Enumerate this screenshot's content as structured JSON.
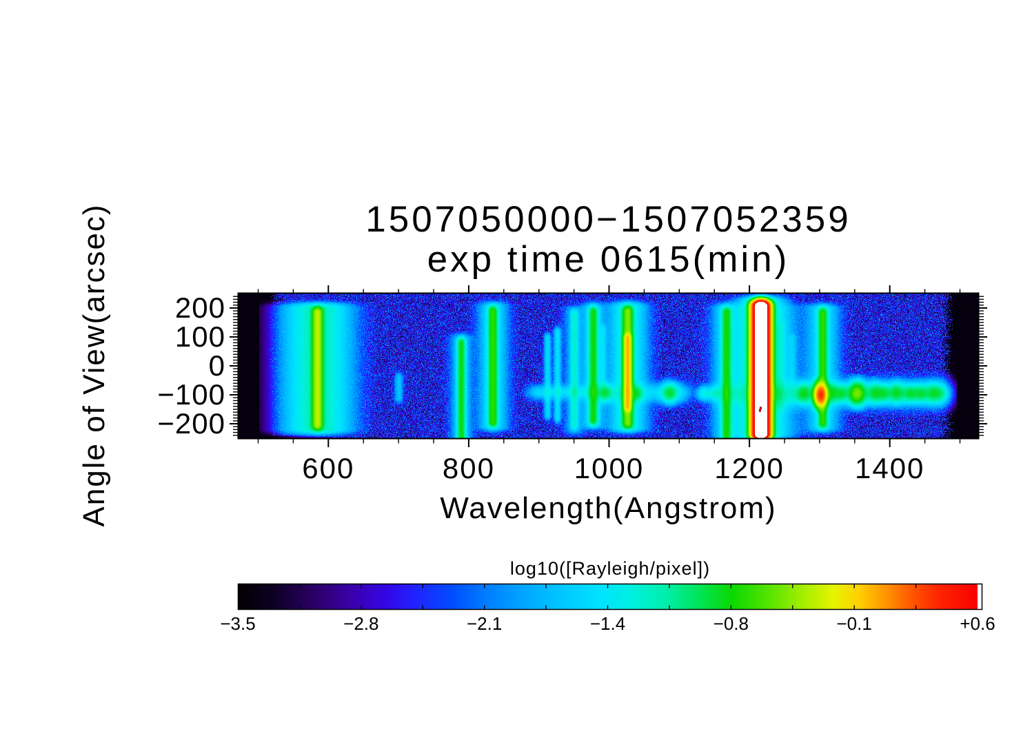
{
  "chart_data": {
    "type": "heatmap",
    "title": "1507050000−1507052359",
    "subtitle": "exp time 0615(min)",
    "xlabel": "Wavelength(Angstrom)",
    "ylabel": "Angle of View(arcsec)",
    "xlim": [
      472,
      1527
    ],
    "ylim": [
      -250,
      250
    ],
    "x_unit": "Angstrom",
    "y_unit": "arcsec",
    "x_ticks": [
      600,
      800,
      1000,
      1200,
      1400
    ],
    "x_tick_labels": [
      "600",
      "800",
      "1000",
      "1200",
      "1400"
    ],
    "x_minor_step": 50,
    "y_ticks": [
      200,
      100,
      0,
      -100,
      -200
    ],
    "y_tick_labels": [
      "200",
      "100",
      "0",
      "−100",
      "−200"
    ],
    "y_minor_step": 10,
    "grid": false,
    "colorbar": {
      "title": "log10([Rayleigh/pixel])",
      "vmin": -3.5,
      "vmax": 0.6,
      "tick_labels": [
        "−3.5",
        "−2.8",
        "−2.1",
        "−1.4",
        "−0.8",
        "−0.1",
        "+0.6"
      ],
      "tick_values": [
        -3.5,
        -2.8,
        -2.1,
        -1.4,
        -0.8,
        -0.1,
        0.6
      ],
      "minor_divisions": 12,
      "saturation_color": "#ffffff",
      "colormap_stops": [
        [
          -3.5,
          "#000000"
        ],
        [
          -3.3,
          "#0e0026"
        ],
        [
          -3.08,
          "#2a0064"
        ],
        [
          -2.88,
          "#3a00a8"
        ],
        [
          -2.68,
          "#3406e6"
        ],
        [
          -2.52,
          "#2222ff"
        ],
        [
          -2.32,
          "#004cff"
        ],
        [
          -2.12,
          "#007eff"
        ],
        [
          -1.92,
          "#00a6ff"
        ],
        [
          -1.7,
          "#00c8ff"
        ],
        [
          -1.5,
          "#00e2ff"
        ],
        [
          -1.32,
          "#00f0e0"
        ],
        [
          -1.12,
          "#00eea6"
        ],
        [
          -0.94,
          "#00e455"
        ],
        [
          -0.76,
          "#0cd800"
        ],
        [
          -0.56,
          "#55e400"
        ],
        [
          -0.36,
          "#a8ee00"
        ],
        [
          -0.2,
          "#e6f400"
        ],
        [
          -0.06,
          "#ffd000"
        ],
        [
          0.08,
          "#ff9800"
        ],
        [
          0.22,
          "#ff5c00"
        ],
        [
          0.38,
          "#ff2400"
        ],
        [
          0.6,
          "#f80000"
        ]
      ]
    },
    "background": {
      "base_value": -2.58,
      "noise_range": 1.0,
      "dark_speckle_fraction": 0.07,
      "bright_speckle_fraction": 0.035,
      "dark_band_left_max_wavelength": 527,
      "dark_band_right_min_wavelength": 1477
    },
    "emission_lines": [
      {
        "wavelength": 584,
        "y_top": 186,
        "y_bottom": -202,
        "peak": -0.36,
        "sigma_x": 4.5,
        "halo_peak": -1.2,
        "halo_sigma": 26
      },
      {
        "wavelength": 700,
        "y_top": -40,
        "y_bottom": -110,
        "peak": -1.78,
        "sigma_x": 3.5,
        "halo_peak": null,
        "halo_sigma": 0
      },
      {
        "wavelength": 789,
        "y_top": 80,
        "y_bottom": -250,
        "peak": -0.85,
        "sigma_x": 3.5,
        "halo_peak": -1.75,
        "halo_sigma": 9
      },
      {
        "wavelength": 834,
        "y_top": 190,
        "y_bottom": -192,
        "peak": -0.74,
        "sigma_x": 4.0,
        "halo_peak": -1.55,
        "halo_sigma": 12
      },
      {
        "wavelength": 912,
        "y_top": 96,
        "y_bottom": -168,
        "peak": -1.62,
        "sigma_x": 3.0,
        "halo_peak": null,
        "halo_sigma": 0
      },
      {
        "wavelength": 926,
        "y_top": 118,
        "y_bottom": -178,
        "peak": -1.56,
        "sigma_x": 3.0,
        "halo_peak": null,
        "halo_sigma": 0
      },
      {
        "wavelength": 950,
        "y_top": 178,
        "y_bottom": -204,
        "peak": -1.4,
        "sigma_x": 3.5,
        "halo_peak": -1.95,
        "halo_sigma": 9
      },
      {
        "wavelength": 977,
        "y_top": 188,
        "y_bottom": -186,
        "peak": -0.85,
        "sigma_x": 4.0,
        "halo_peak": -1.65,
        "halo_sigma": 10
      },
      {
        "wavelength": 991,
        "y_top": 128,
        "y_bottom": -60,
        "peak": -1.72,
        "sigma_x": 3.0,
        "halo_peak": null,
        "halo_sigma": 0
      },
      {
        "wavelength": 1026,
        "y_top": 190,
        "y_bottom": -196,
        "peak": -0.52,
        "sigma_x": 4.5,
        "halo_peak": -1.35,
        "halo_sigma": 15
      },
      {
        "wavelength": 1026,
        "y_top": 96,
        "y_bottom": -140,
        "peak": -0.15,
        "sigma_x": 3.2,
        "halo_peak": null,
        "halo_sigma": 0
      },
      {
        "wavelength": 1167,
        "y_top": 186,
        "y_bottom": -248,
        "peak": -0.83,
        "sigma_x": 4.0,
        "halo_peak": -1.6,
        "halo_sigma": 11
      },
      {
        "wavelength": 1216,
        "y_top": 208,
        "y_bottom": -234,
        "peak": 1.04,
        "sigma_x": 6.5,
        "halo_peak": -1.08,
        "halo_sigma": 17
      },
      {
        "wavelength": 1216,
        "y_top": 200,
        "y_bottom": -228,
        "peak": -1.62,
        "sigma_x": 30,
        "halo_peak": null,
        "halo_sigma": 0
      },
      {
        "wavelength": 1243,
        "y_top": 136,
        "y_bottom": -140,
        "peak": -1.82,
        "sigma_x": 5.0,
        "halo_peak": null,
        "halo_sigma": 0
      },
      {
        "wavelength": 1260,
        "y_top": 96,
        "y_bottom": -116,
        "peak": -1.92,
        "sigma_x": 4.0,
        "halo_peak": null,
        "halo_sigma": 0
      },
      {
        "wavelength": 1304,
        "y_top": 184,
        "y_bottom": -196,
        "peak": -0.75,
        "sigma_x": 4.0,
        "halo_peak": -1.55,
        "halo_sigma": 13
      }
    ],
    "disk_blobs": [
      {
        "wavelength": 994,
        "y": -92,
        "peak": -1.02,
        "sigma_x": 6,
        "sigma_y": 7
      },
      {
        "wavelength": 1038,
        "y": -94,
        "peak": -1.06,
        "sigma_x": 6,
        "sigma_y": 7
      },
      {
        "wavelength": 1086,
        "y": -92,
        "peak": -0.96,
        "sigma_x": 7,
        "sigma_y": 8
      },
      {
        "wavelength": 1135,
        "y": -94,
        "peak": -1.35,
        "sigma_x": 6,
        "sigma_y": 6
      },
      {
        "wavelength": 1150,
        "y": -94,
        "peak": -1.45,
        "sigma_x": 5,
        "sigma_y": 6
      },
      {
        "wavelength": 1277,
        "y": -94,
        "peak": -0.92,
        "sigma_x": 7,
        "sigma_y": 8
      },
      {
        "wavelength": 1301,
        "y": -99,
        "peak": 0.32,
        "sigma_x": 5,
        "sigma_y": 9
      },
      {
        "wavelength": 1317,
        "y": -92,
        "peak": -0.96,
        "sigma_x": 6,
        "sigma_y": 8
      },
      {
        "wavelength": 1331,
        "y": -94,
        "peak": -1.02,
        "sigma_x": 6,
        "sigma_y": 7
      },
      {
        "wavelength": 1353,
        "y": -94,
        "peak": -0.52,
        "sigma_x": 7,
        "sigma_y": 9
      },
      {
        "wavelength": 1378,
        "y": -92,
        "peak": -0.96,
        "sigma_x": 7,
        "sigma_y": 8
      },
      {
        "wavelength": 1391,
        "y": -94,
        "peak": -1.05,
        "sigma_x": 6,
        "sigma_y": 7
      },
      {
        "wavelength": 1409,
        "y": -92,
        "peak": -0.95,
        "sigma_x": 7,
        "sigma_y": 8
      },
      {
        "wavelength": 1429,
        "y": -94,
        "peak": -1.0,
        "sigma_x": 7,
        "sigma_y": 7
      },
      {
        "wavelength": 1444,
        "y": -94,
        "peak": -1.04,
        "sigma_x": 6,
        "sigma_y": 7
      },
      {
        "wavelength": 1461,
        "y": -93,
        "peak": -1.0,
        "sigma_x": 7,
        "sigma_y": 8
      },
      {
        "wavelength": 1472,
        "y": -94,
        "peak": -1.3,
        "sigma_x": 6,
        "sigma_y": 7
      }
    ],
    "horizontal_streaks": [
      {
        "x0": 900,
        "x1": 975,
        "y": -90,
        "peak": -1.62,
        "sigma_y": 6
      },
      {
        "x0": 985,
        "x1": 1100,
        "y": -92,
        "peak": -1.65,
        "sigma_y": 8
      },
      {
        "x0": 1160,
        "x1": 1235,
        "y": -95,
        "peak": -1.6,
        "sigma_y": 9
      },
      {
        "x0": 1235,
        "x1": 1470,
        "y": -95,
        "peak": -1.5,
        "sigma_y": 11
      }
    ],
    "saturation_marks": [
      {
        "wavelength": 1216,
        "y": -146
      },
      {
        "wavelength": 1215,
        "y": -154
      }
    ]
  }
}
